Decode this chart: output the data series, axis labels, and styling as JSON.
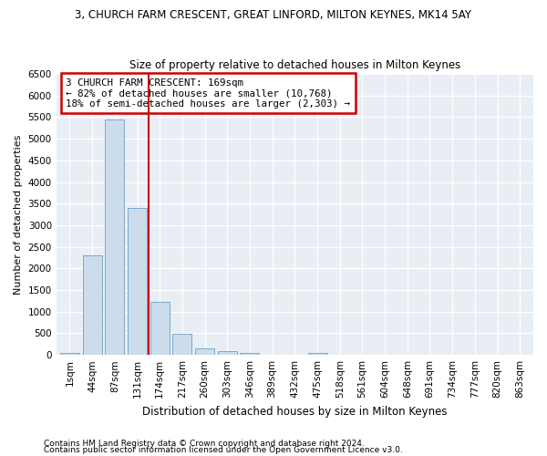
{
  "title": "3, CHURCH FARM CRESCENT, GREAT LINFORD, MILTON KEYNES, MK14 5AY",
  "subtitle": "Size of property relative to detached houses in Milton Keynes",
  "xlabel": "Distribution of detached houses by size in Milton Keynes",
  "ylabel": "Number of detached properties",
  "bar_labels": [
    "1sqm",
    "44sqm",
    "87sqm",
    "131sqm",
    "174sqm",
    "217sqm",
    "260sqm",
    "303sqm",
    "346sqm",
    "389sqm",
    "432sqm",
    "475sqm",
    "518sqm",
    "561sqm",
    "604sqm",
    "648sqm",
    "691sqm",
    "734sqm",
    "777sqm",
    "820sqm",
    "863sqm"
  ],
  "bar_values": [
    50,
    2300,
    5450,
    3400,
    1220,
    490,
    160,
    90,
    50,
    0,
    0,
    50,
    0,
    0,
    0,
    0,
    0,
    0,
    0,
    0,
    0
  ],
  "bar_color": "#ccdcec",
  "bar_edge_color": "#7aaac8",
  "vline_x": 3.5,
  "vline_color": "#cc0000",
  "annotation_text": "3 CHURCH FARM CRESCENT: 169sqm\n← 82% of detached houses are smaller (10,768)\n18% of semi-detached houses are larger (2,303) →",
  "annotation_box_color": "#cc0000",
  "ylim": [
    0,
    6500
  ],
  "yticks": [
    0,
    500,
    1000,
    1500,
    2000,
    2500,
    3000,
    3500,
    4000,
    4500,
    5000,
    5500,
    6000,
    6500
  ],
  "footer1": "Contains HM Land Registry data © Crown copyright and database right 2024.",
  "footer2": "Contains public sector information licensed under the Open Government Licence v3.0.",
  "bg_color": "#ffffff",
  "plot_bg_color": "#e8eef4",
  "grid_color": "#ffffff",
  "title_fontsize": 8.5,
  "subtitle_fontsize": 8.5,
  "ylabel_fontsize": 8,
  "xlabel_fontsize": 8.5,
  "tick_fontsize": 7.5,
  "footer_fontsize": 6.5
}
